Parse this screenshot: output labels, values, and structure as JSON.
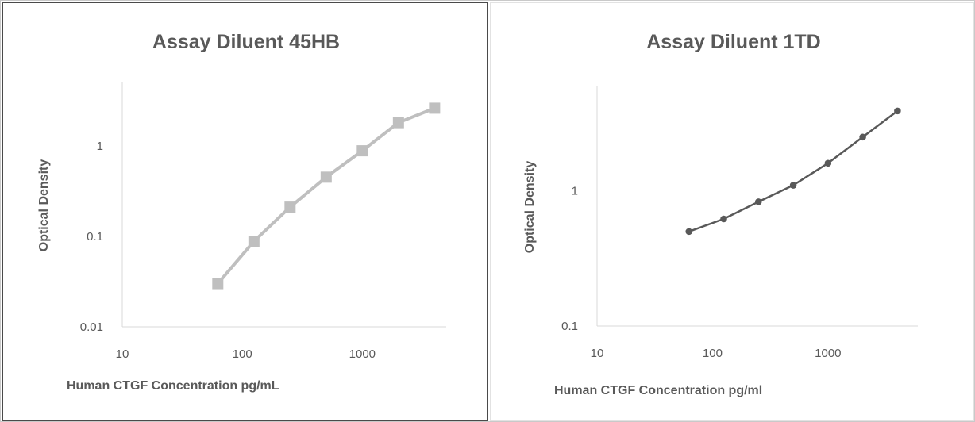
{
  "chart_data": [
    {
      "type": "line",
      "title": "Assay Diluent 45HB",
      "xlabel": "Human CTGF Concentration pg/mL",
      "ylabel": "Optical Density",
      "x_scale": "log",
      "y_scale": "log",
      "xlim": [
        10,
        5000
      ],
      "ylim": [
        0.01,
        5
      ],
      "x_ticks": [
        "10",
        "100",
        "1000"
      ],
      "y_ticks": [
        "0.01",
        "0.1",
        "1"
      ],
      "grid": false,
      "legend": "none",
      "marker": "square",
      "color": "#bfbfbf",
      "series": [
        {
          "x": [
            62.5,
            125,
            250,
            500,
            1000,
            2000,
            4000
          ],
          "values": [
            0.03,
            0.088,
            0.21,
            0.45,
            0.88,
            1.8,
            2.6
          ]
        }
      ]
    },
    {
      "type": "line",
      "title": "Assay Diluent 1TD",
      "xlabel": "Human CTGF Concentration pg/ml",
      "ylabel": "Optical Density",
      "x_scale": "log",
      "y_scale": "log",
      "xlim": [
        10,
        6000
      ],
      "ylim": [
        0.1,
        6
      ],
      "x_ticks": [
        "10",
        "100",
        "1000"
      ],
      "y_ticks": [
        "0.1",
        "1"
      ],
      "grid": false,
      "legend": "none",
      "marker": "circle",
      "color": "#595959",
      "series": [
        {
          "x": [
            62.5,
            125,
            250,
            500,
            1000,
            2000,
            4000
          ],
          "values": [
            0.5,
            0.62,
            0.83,
            1.1,
            1.6,
            2.5,
            3.9
          ]
        }
      ]
    }
  ]
}
